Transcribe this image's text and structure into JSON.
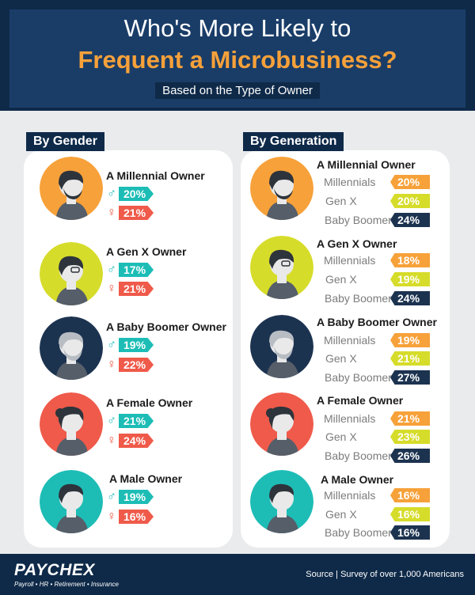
{
  "header": {
    "title_line1": "Who's More Likely to",
    "title_line2": "Frequent a Microbusiness?",
    "subtitle": "Based on the Type of Owner"
  },
  "gender": {
    "heading": "By Gender",
    "rows": [
      {
        "title": "A Millennial Owner",
        "male": "20%",
        "female": "21%"
      },
      {
        "title": "A Gen X Owner",
        "male": "17%",
        "female": "21%"
      },
      {
        "title": "A Baby Boomer Owner",
        "male": "19%",
        "female": "22%"
      },
      {
        "title": "A Female Owner",
        "male": "21%",
        "female": "24%"
      },
      {
        "title": "A Male Owner",
        "male": "19%",
        "female": "16%"
      }
    ]
  },
  "generation": {
    "heading": "By Generation",
    "labels": [
      "Millennials",
      "Gen X",
      "Baby Boomers"
    ],
    "rows": [
      {
        "title": "A Millennial Owner",
        "values": [
          "20%",
          "20%",
          "24%"
        ]
      },
      {
        "title": "A Gen X Owner",
        "values": [
          "18%",
          "19%",
          "24%"
        ]
      },
      {
        "title": "A Baby Boomer Owner",
        "values": [
          "19%",
          "21%",
          "27%"
        ]
      },
      {
        "title": "A Female Owner",
        "values": [
          "21%",
          "23%",
          "26%"
        ]
      },
      {
        "title": "A Male Owner",
        "values": [
          "16%",
          "16%",
          "16%"
        ]
      }
    ]
  },
  "icons": {
    "male": "♂",
    "female": "♀"
  },
  "colors": {
    "navy": "#0f2a49",
    "orange": "#f7a13a",
    "yellow_green": "#d6dc2a",
    "teal": "#1dbdb6",
    "coral": "#ef5a4a",
    "dark_navy": "#1c3350"
  },
  "footer": {
    "logo": "PAYCHEX",
    "tagline": "Payroll • HR • Retirement • Insurance",
    "source": "Source | Survey of over 1,000 Americans"
  }
}
